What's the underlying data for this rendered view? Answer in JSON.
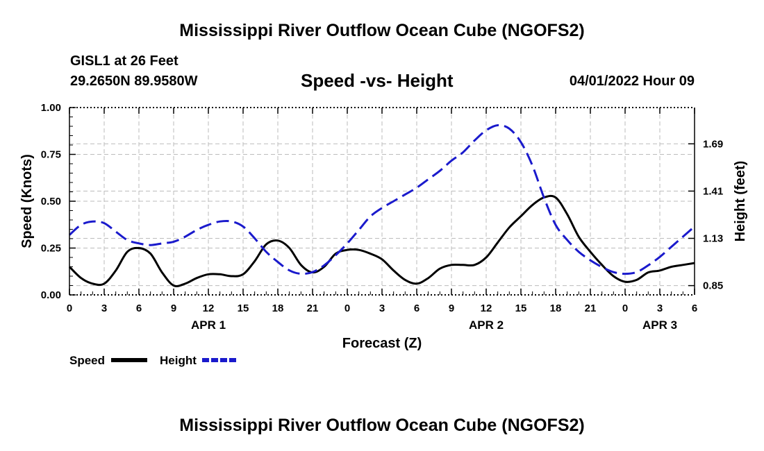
{
  "header": {
    "title": "Mississippi River Outflow Ocean Cube (NGOFS2)",
    "station": "GISL1 at 26 Feet",
    "coords": "29.2650N  89.9580W",
    "subtitle": "Speed -vs- Height",
    "datetime": "04/01/2022 Hour 09",
    "repeat_title": "Mississippi River Outflow Ocean Cube (NGOFS2)"
  },
  "chart_data": {
    "type": "line",
    "title": "Speed -vs- Height",
    "xlabel": "Forecast (Z)",
    "ylabel": "Speed (Knots)",
    "y2label": "Height (feet)",
    "x_hours_range": [
      0,
      54
    ],
    "x_ticks": [
      {
        "h": 0,
        "label": "0"
      },
      {
        "h": 3,
        "label": "3"
      },
      {
        "h": 6,
        "label": "6"
      },
      {
        "h": 9,
        "label": "9"
      },
      {
        "h": 12,
        "label": "12"
      },
      {
        "h": 15,
        "label": "15"
      },
      {
        "h": 18,
        "label": "18"
      },
      {
        "h": 21,
        "label": "21"
      },
      {
        "h": 24,
        "label": "0"
      },
      {
        "h": 27,
        "label": "3"
      },
      {
        "h": 30,
        "label": "6"
      },
      {
        "h": 33,
        "label": "9"
      },
      {
        "h": 36,
        "label": "12"
      },
      {
        "h": 39,
        "label": "15"
      },
      {
        "h": 42,
        "label": "18"
      },
      {
        "h": 45,
        "label": "21"
      },
      {
        "h": 48,
        "label": "0"
      },
      {
        "h": 51,
        "label": "3"
      },
      {
        "h": 54,
        "label": "6"
      }
    ],
    "day_labels": [
      {
        "h": 12,
        "label": "APR 1"
      },
      {
        "h": 36,
        "label": "APR 2"
      },
      {
        "h": 51,
        "label": "APR 3"
      }
    ],
    "ylim": [
      0,
      1
    ],
    "y_ticks": [
      {
        "v": 0,
        "label": "0.00"
      },
      {
        "v": 0.25,
        "label": "0.25"
      },
      {
        "v": 0.5,
        "label": "0.50"
      },
      {
        "v": 0.75,
        "label": "0.75"
      },
      {
        "v": 1.0,
        "label": "1.00"
      }
    ],
    "y2lim": [
      0.795,
      1.905
    ],
    "y2_ticks": [
      {
        "v": 0.85,
        "label": "0.85"
      },
      {
        "v": 1.13,
        "label": "1.13"
      },
      {
        "v": 1.41,
        "label": "1.41"
      },
      {
        "v": 1.69,
        "label": "1.69"
      }
    ],
    "series": [
      {
        "name": "Speed",
        "axis": "left",
        "color": "#000000",
        "dash": "solid",
        "points": [
          [
            0,
            0.15
          ],
          [
            1,
            0.09
          ],
          [
            2,
            0.06
          ],
          [
            3,
            0.06
          ],
          [
            4,
            0.13
          ],
          [
            5,
            0.23
          ],
          [
            6,
            0.25
          ],
          [
            7,
            0.22
          ],
          [
            8,
            0.12
          ],
          [
            9,
            0.05
          ],
          [
            10,
            0.06
          ],
          [
            11,
            0.09
          ],
          [
            12,
            0.11
          ],
          [
            13,
            0.11
          ],
          [
            14,
            0.1
          ],
          [
            15,
            0.11
          ],
          [
            16,
            0.18
          ],
          [
            17,
            0.27
          ],
          [
            18,
            0.29
          ],
          [
            19,
            0.25
          ],
          [
            20,
            0.16
          ],
          [
            21,
            0.12
          ],
          [
            22,
            0.15
          ],
          [
            23,
            0.22
          ],
          [
            24,
            0.24
          ],
          [
            25,
            0.24
          ],
          [
            26,
            0.22
          ],
          [
            27,
            0.19
          ],
          [
            28,
            0.13
          ],
          [
            29,
            0.08
          ],
          [
            30,
            0.06
          ],
          [
            31,
            0.09
          ],
          [
            32,
            0.14
          ],
          [
            33,
            0.16
          ],
          [
            34,
            0.16
          ],
          [
            35,
            0.16
          ],
          [
            36,
            0.2
          ],
          [
            37,
            0.28
          ],
          [
            38,
            0.36
          ],
          [
            39,
            0.42
          ],
          [
            40,
            0.48
          ],
          [
            41,
            0.52
          ],
          [
            42,
            0.52
          ],
          [
            43,
            0.43
          ],
          [
            44,
            0.31
          ],
          [
            45,
            0.23
          ],
          [
            46,
            0.16
          ],
          [
            47,
            0.1
          ],
          [
            48,
            0.07
          ],
          [
            49,
            0.08
          ],
          [
            50,
            0.12
          ],
          [
            51,
            0.13
          ],
          [
            52,
            0.15
          ],
          [
            53,
            0.16
          ],
          [
            54,
            0.17
          ]
        ]
      },
      {
        "name": "Height",
        "axis": "right",
        "color": "#1a1acc",
        "dash": "dashed",
        "points": [
          [
            0,
            1.15
          ],
          [
            1,
            1.21
          ],
          [
            2,
            1.23
          ],
          [
            3,
            1.22
          ],
          [
            4,
            1.17
          ],
          [
            5,
            1.12
          ],
          [
            6,
            1.1
          ],
          [
            7,
            1.09
          ],
          [
            8,
            1.1
          ],
          [
            9,
            1.11
          ],
          [
            10,
            1.14
          ],
          [
            11,
            1.18
          ],
          [
            12,
            1.21
          ],
          [
            13,
            1.23
          ],
          [
            14,
            1.23
          ],
          [
            15,
            1.2
          ],
          [
            16,
            1.13
          ],
          [
            17,
            1.05
          ],
          [
            18,
            0.99
          ],
          [
            19,
            0.94
          ],
          [
            20,
            0.92
          ],
          [
            21,
            0.93
          ],
          [
            22,
            0.97
          ],
          [
            23,
            1.03
          ],
          [
            24,
            1.1
          ],
          [
            25,
            1.18
          ],
          [
            26,
            1.26
          ],
          [
            27,
            1.31
          ],
          [
            28,
            1.35
          ],
          [
            29,
            1.39
          ],
          [
            30,
            1.43
          ],
          [
            31,
            1.48
          ],
          [
            32,
            1.53
          ],
          [
            33,
            1.59
          ],
          [
            34,
            1.64
          ],
          [
            35,
            1.71
          ],
          [
            36,
            1.77
          ],
          [
            37,
            1.8
          ],
          [
            38,
            1.78
          ],
          [
            39,
            1.7
          ],
          [
            40,
            1.56
          ],
          [
            41,
            1.37
          ],
          [
            42,
            1.21
          ],
          [
            43,
            1.12
          ],
          [
            44,
            1.05
          ],
          [
            45,
            1.0
          ],
          [
            46,
            0.96
          ],
          [
            47,
            0.93
          ],
          [
            48,
            0.92
          ],
          [
            49,
            0.93
          ],
          [
            50,
            0.97
          ],
          [
            51,
            1.02
          ],
          [
            52,
            1.08
          ],
          [
            53,
            1.14
          ],
          [
            54,
            1.2
          ]
        ]
      }
    ],
    "legend": [
      {
        "name": "Speed",
        "color": "#000000",
        "dash": "solid"
      },
      {
        "name": "Height",
        "color": "#1a1acc",
        "dash": "dashed"
      }
    ],
    "grid": true,
    "legend_position": "bottom-left"
  }
}
